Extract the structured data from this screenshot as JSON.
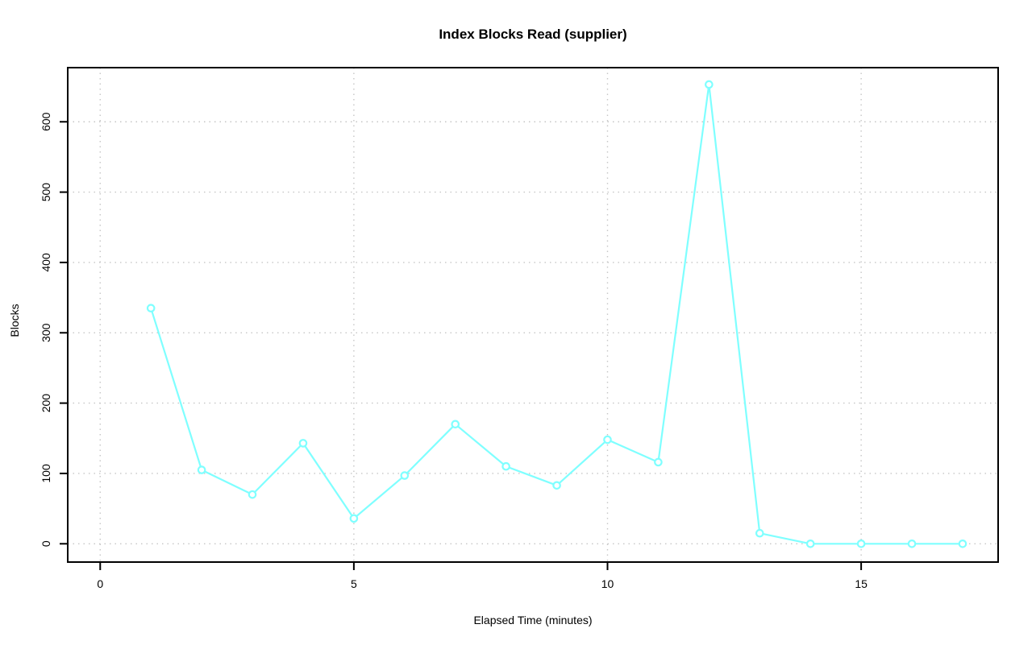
{
  "chart_data": {
    "type": "line",
    "title": "Index Blocks Read (supplier)",
    "xlabel": "Elapsed Time (minutes)",
    "ylabel": "Blocks",
    "x": [
      1,
      2,
      3,
      4,
      5,
      6,
      7,
      8,
      9,
      10,
      11,
      12,
      13,
      14,
      15,
      16,
      17
    ],
    "values": [
      335,
      105,
      70,
      143,
      36,
      97,
      170,
      110,
      83,
      148,
      116,
      653,
      15,
      0,
      0,
      0,
      0
    ],
    "series_name": "Blocks",
    "xticks": [
      0,
      5,
      10,
      15
    ],
    "yticks": [
      0,
      100,
      200,
      300,
      400,
      500,
      600
    ],
    "xlim": [
      -0.64,
      17.7
    ],
    "ylim": [
      -26,
      677
    ],
    "grid": "dotted",
    "legend": "none",
    "marker": "open-circle",
    "line_color": "#7fffff",
    "marker_fill": "#ffffff",
    "grid_color": "#c6c6c6",
    "axis_color": "#000000",
    "background_color": "#ffffff"
  }
}
